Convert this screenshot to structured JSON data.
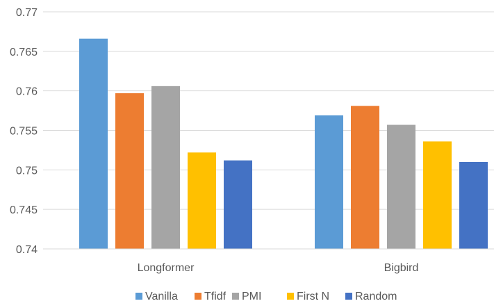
{
  "chart_data": {
    "type": "bar",
    "title": "",
    "xlabel": "",
    "ylabel": "",
    "categories": [
      "Longformer",
      "Bigbird"
    ],
    "series": [
      {
        "name": "Vanilla",
        "color": "#5B9BD5",
        "values": [
          0.7666,
          0.7569
        ]
      },
      {
        "name": "Tfidf",
        "color": "#ED7D31",
        "values": [
          0.7597,
          0.7581
        ]
      },
      {
        "name": "PMI",
        "color": "#A5A5A5",
        "values": [
          0.7606,
          0.7557
        ]
      },
      {
        "name": "First N",
        "color": "#FFC000",
        "values": [
          0.7522,
          0.7536
        ]
      },
      {
        "name": "Random",
        "color": "#4472C4",
        "values": [
          0.7512,
          0.751
        ]
      }
    ],
    "ylim": [
      0.74,
      0.77
    ],
    "yticks": [
      "0.74",
      "0.745",
      "0.75",
      "0.755",
      "0.76",
      "0.765",
      "0.77"
    ],
    "grid": true,
    "legend_position": "bottom"
  }
}
